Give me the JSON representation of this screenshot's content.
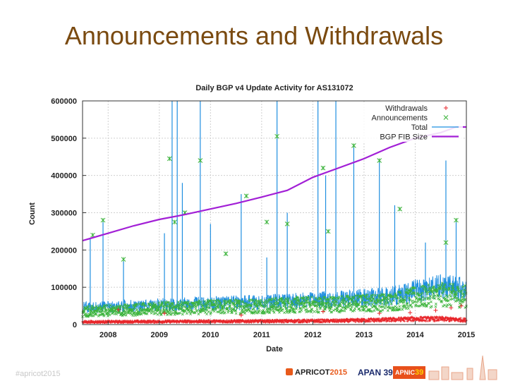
{
  "slide": {
    "title": "Announcements and Withdrawals",
    "footer_left": "#apricot2015",
    "logos": {
      "apricot_name": "APRICOT",
      "apricot_year": "2015",
      "apan": "APAN 39",
      "apnic_name": "APNIC",
      "apnic_num": "39"
    }
  },
  "chart_data": {
    "type": "line",
    "title": "Daily BGP v4 Update Activity for AS131072",
    "xlabel": "Date",
    "ylabel": "Count",
    "xlim": [
      2007.5,
      2015.0
    ],
    "ylim": [
      0,
      600000
    ],
    "x_ticks": [
      2008,
      2009,
      2010,
      2011,
      2012,
      2013,
      2014,
      2015
    ],
    "x_tick_labels": [
      "2008",
      "2009",
      "2010",
      "2011",
      "2012",
      "2013",
      "2014",
      "2015"
    ],
    "y_ticks": [
      0,
      100000,
      200000,
      300000,
      400000,
      500000,
      600000
    ],
    "y_tick_labels": [
      "0",
      "100000",
      "200000",
      "300000",
      "400000",
      "500000",
      "600000"
    ],
    "grid": true,
    "legend": "top-right",
    "colors": {
      "withdrawals": "#e8262b",
      "announcements": "#3bb33b",
      "total": "#1f8fe0",
      "fib": "#a21fd6"
    },
    "series": [
      {
        "name": "Withdrawals",
        "style": "points",
        "baseline": [
          [
            2007.5,
            7000
          ],
          [
            2009,
            8000
          ],
          [
            2011,
            9000
          ],
          [
            2012.5,
            10000
          ],
          [
            2013.5,
            13000
          ],
          [
            2014,
            15000
          ],
          [
            2014.5,
            15000
          ],
          [
            2015.0,
            12000
          ]
        ],
        "spikes": [
          [
            2008.2,
            40000
          ],
          [
            2009.1,
            30000
          ],
          [
            2010.6,
            25000
          ],
          [
            2012.2,
            35000
          ],
          [
            2013.3,
            30000
          ],
          [
            2013.9,
            32000
          ],
          [
            2014.4,
            38000
          ],
          [
            2014.7,
            45000
          ],
          [
            2014.9,
            50000
          ]
        ]
      },
      {
        "name": "Announcements",
        "style": "points",
        "baseline": [
          [
            2007.5,
            35000
          ],
          [
            2008.5,
            40000
          ],
          [
            2009.5,
            45000
          ],
          [
            2010.5,
            48000
          ],
          [
            2011.5,
            52000
          ],
          [
            2012.5,
            55000
          ],
          [
            2013.5,
            60000
          ],
          [
            2014,
            72000
          ],
          [
            2014.5,
            80000
          ],
          [
            2015.0,
            75000
          ]
        ],
        "spikes": [
          [
            2007.7,
            240000
          ],
          [
            2007.9,
            280000
          ],
          [
            2008.3,
            175000
          ],
          [
            2009.2,
            445000
          ],
          [
            2009.3,
            275000
          ],
          [
            2009.5,
            300000
          ],
          [
            2009.8,
            440000
          ],
          [
            2010.3,
            190000
          ],
          [
            2010.7,
            345000
          ],
          [
            2011.1,
            275000
          ],
          [
            2011.3,
            505000
          ],
          [
            2011.5,
            270000
          ],
          [
            2012.2,
            420000
          ],
          [
            2012.3,
            250000
          ],
          [
            2012.8,
            480000
          ],
          [
            2013.3,
            440000
          ],
          [
            2013.7,
            310000
          ],
          [
            2014.6,
            220000
          ],
          [
            2014.8,
            280000
          ]
        ]
      },
      {
        "name": "Total",
        "style": "line",
        "baseline": [
          [
            2007.5,
            45000
          ],
          [
            2008.5,
            50000
          ],
          [
            2009.5,
            55000
          ],
          [
            2010.5,
            58000
          ],
          [
            2011.5,
            62000
          ],
          [
            2012.5,
            68000
          ],
          [
            2013.5,
            75000
          ],
          [
            2014,
            90000
          ],
          [
            2014.5,
            100000
          ],
          [
            2015.0,
            95000
          ]
        ],
        "spikes": [
          [
            2007.65,
            230000
          ],
          [
            2007.9,
            280000
          ],
          [
            2008.3,
            170000
          ],
          [
            2009.1,
            245000
          ],
          [
            2009.25,
            600000
          ],
          [
            2009.35,
            600000
          ],
          [
            2009.45,
            380000
          ],
          [
            2009.8,
            600000
          ],
          [
            2010.0,
            270000
          ],
          [
            2010.6,
            350000
          ],
          [
            2011.1,
            180000
          ],
          [
            2011.3,
            600000
          ],
          [
            2011.5,
            300000
          ],
          [
            2012.1,
            600000
          ],
          [
            2012.25,
            400000
          ],
          [
            2012.45,
            600000
          ],
          [
            2012.8,
            480000
          ],
          [
            2013.3,
            440000
          ],
          [
            2013.6,
            320000
          ],
          [
            2014.2,
            220000
          ],
          [
            2014.6,
            440000
          ],
          [
            2014.8,
            280000
          ]
        ]
      },
      {
        "name": "BGP FIB Size",
        "style": "line",
        "points": [
          [
            2007.5,
            225000
          ],
          [
            2008.0,
            245000
          ],
          [
            2008.5,
            265000
          ],
          [
            2009.0,
            282000
          ],
          [
            2009.5,
            295000
          ],
          [
            2010.0,
            310000
          ],
          [
            2010.5,
            325000
          ],
          [
            2011.0,
            342000
          ],
          [
            2011.5,
            360000
          ],
          [
            2012.0,
            395000
          ],
          [
            2012.5,
            420000
          ],
          [
            2013.0,
            445000
          ],
          [
            2013.5,
            475000
          ],
          [
            2014.0,
            500000
          ],
          [
            2014.5,
            515000
          ],
          [
            2014.8,
            530000
          ],
          [
            2015.0,
            530000
          ]
        ]
      }
    ]
  }
}
